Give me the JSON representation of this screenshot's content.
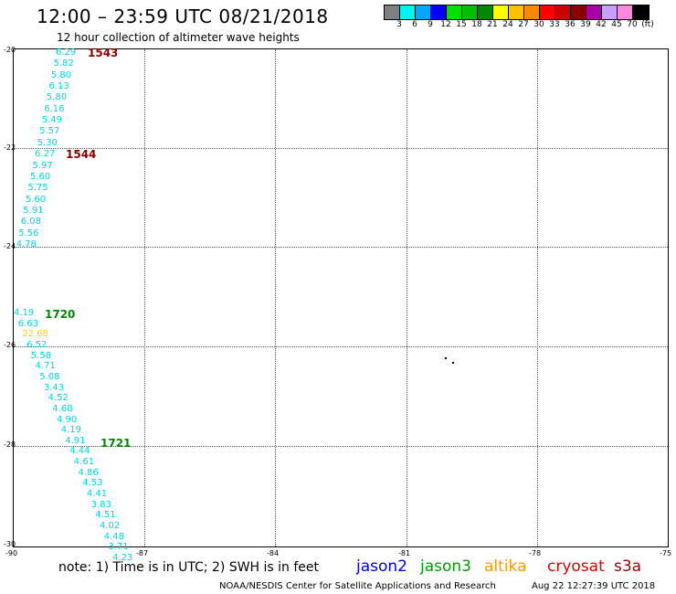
{
  "header": {
    "title": "12:00 – 23:59 UTC 08/21/2018",
    "subtitle": "12 hour collection of altimeter wave heights"
  },
  "colorbar": {
    "colors": [
      "#808080",
      "#00f5f5",
      "#00a8ff",
      "#0000ff",
      "#00e000",
      "#00c000",
      "#008800",
      "#ffff00",
      "#ffc000",
      "#ff8800",
      "#ff0000",
      "#cc0000",
      "#880000",
      "#aa00aa",
      "#c8a0ff",
      "#ff88dd",
      "#000000"
    ],
    "labels": [
      "3",
      "6",
      "9",
      "12",
      "15",
      "18",
      "21",
      "24",
      "27",
      "30",
      "33",
      "36",
      "39",
      "42",
      "45",
      "70",
      "(ft)"
    ]
  },
  "axes": {
    "y_labels": [
      "-20",
      "-22",
      "-24",
      "-26",
      "-28",
      "-30"
    ],
    "x_labels": [
      "-90",
      "-87",
      "-84",
      "-81",
      "-78",
      "-75"
    ]
  },
  "passes": [
    {
      "label": "1543",
      "color": "#880000"
    },
    {
      "label": "1544",
      "color": "#880000"
    },
    {
      "label": "1720",
      "color": "#008800"
    },
    {
      "label": "1721",
      "color": "#008800"
    }
  ],
  "wave_track_1": [
    "6.29",
    "5.82",
    "5.80",
    "6.13",
    "5.80",
    "6.16",
    "5.49",
    "5.57",
    "5.30",
    "6.27",
    "5.97",
    "5.60",
    "5.75",
    "5.60",
    "5.91",
    "6.08",
    "5.56",
    "4.78"
  ],
  "wave_track_2": [
    "4.19",
    "6.63",
    "22.68",
    "6.52",
    "5.58",
    "4.71",
    "5.08",
    "3.43",
    "4.52",
    "4.68",
    "4.90",
    "4.19",
    "4.91",
    "4.44",
    "4.61",
    "4.86",
    "4.53",
    "4.41",
    "3.83",
    "4.51",
    "4.02",
    "4.48",
    "3.71",
    "4.23"
  ],
  "legend": {
    "note": "note: 1) Time is in UTC; 2) SWH is in feet",
    "satellites": [
      {
        "name": "jason2",
        "color": "#0000dd"
      },
      {
        "name": "jason3",
        "color": "#009900"
      },
      {
        "name": "altika",
        "color": "#ff9900"
      },
      {
        "name": "cryosat",
        "color": "#dd0000"
      },
      {
        "name": "s3a",
        "color": "#990000"
      }
    ]
  },
  "footer": {
    "credit": "NOAA/NESDIS Center for Satellite Applications and Research",
    "timestamp": "Aug 22 12:27:39 UTC 2018"
  }
}
